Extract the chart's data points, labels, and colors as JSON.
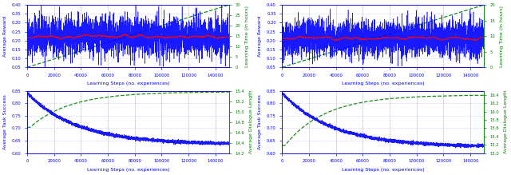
{
  "fig_width": 6.4,
  "fig_height": 2.19,
  "dpi": 100,
  "top_left": {
    "ylabel_left": "Average Reward",
    "ylabel_right": "Learning Time (in hours)",
    "xlabel": "Learning Steps (no. experiences)",
    "ylim_left": [
      0.05,
      0.4
    ],
    "ylim_right": [
      0,
      30
    ],
    "yticks_left": [
      0.05,
      0.1,
      0.15,
      0.2,
      0.25,
      0.3,
      0.35,
      0.4
    ],
    "yticks_right": [
      0,
      5,
      10,
      15,
      20,
      25,
      30
    ],
    "reward_mean": 0.22,
    "reward_std": 0.055,
    "time_end": 30
  },
  "top_right": {
    "ylabel_left": "Average Reward",
    "ylabel_right": "Learning Time (in hours)",
    "xlabel": "Learning Steps (no. experiences)",
    "ylim_left": [
      0.05,
      0.4
    ],
    "ylim_right": [
      0,
      20
    ],
    "yticks_left": [
      0.05,
      0.1,
      0.15,
      0.2,
      0.25,
      0.3,
      0.35,
      0.4
    ],
    "yticks_right": [
      0,
      5,
      10,
      15,
      20
    ],
    "reward_mean": 0.215,
    "reward_std": 0.05,
    "time_end": 20
  },
  "bottom_left": {
    "ylabel_left": "Average Task Success",
    "ylabel_right": "Average Dialogue Length",
    "xlabel": "Learning Steps (no. experiences)",
    "ylim_left": [
      0.6,
      0.85
    ],
    "ylim_right": [
      14.2,
      15.4
    ],
    "yticks_left": [
      0.6,
      0.65,
      0.7,
      0.75,
      0.8,
      0.85
    ],
    "yticks_right": [
      14.2,
      14.4,
      14.6,
      14.8,
      15.0,
      15.2,
      15.4
    ],
    "success_start": 0.84,
    "success_end": 0.635,
    "dialogue_start": 14.65,
    "dialogue_end": 15.38
  },
  "bottom_right": {
    "ylabel_left": "Average Task Success",
    "ylabel_right": "Average Dialogue Length",
    "xlabel": "Learning Steps (no. experiences)",
    "ylim_left": [
      0.6,
      0.85
    ],
    "ylim_right": [
      15.0,
      16.5
    ],
    "yticks_left": [
      0.6,
      0.65,
      0.7,
      0.75,
      0.8,
      0.85
    ],
    "yticks_right": [
      15.0,
      15.2,
      15.4,
      15.6,
      15.8,
      16.0,
      16.2,
      16.4
    ],
    "success_start": 0.84,
    "success_end": 0.625,
    "dialogue_start": 15.1,
    "dialogue_end": 16.4
  },
  "blue_color": "#0000FF",
  "red_color": "#FF0000",
  "green_color": "#008000",
  "bg_color": "#FFFFFF",
  "grid_color": "#9999FF",
  "vline_color": "#808080",
  "xticks": [
    0,
    20000,
    40000,
    60000,
    80000,
    100000,
    120000,
    140000
  ],
  "xticklabels": [
    "0",
    "20000",
    "40000",
    "60000",
    "80000",
    "100000",
    "120000",
    "140000"
  ],
  "vlines": [
    20000,
    40000,
    60000,
    80000,
    100000,
    120000,
    140000
  ],
  "xlim": [
    0,
    150000
  ],
  "N": 3000,
  "x_max": 150000
}
